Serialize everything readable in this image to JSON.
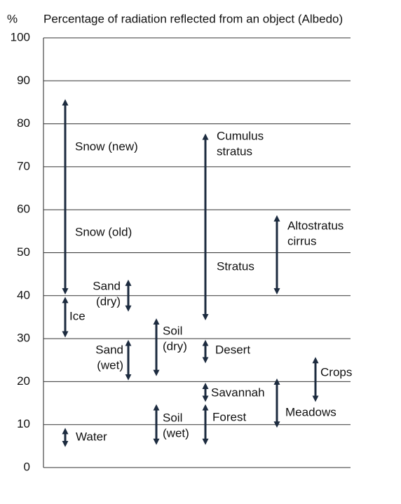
{
  "chart_data": {
    "type": "range",
    "title": "Percentage of radiation reflected from an object (Albedo)",
    "y_label": "%",
    "ylim": [
      0,
      100
    ],
    "yticks": [
      0,
      10,
      20,
      30,
      40,
      50,
      60,
      70,
      80,
      90,
      100
    ],
    "grid": true,
    "color": "#1c2b3f",
    "ranges": [
      {
        "labels": [
          [
            "Snow (new)"
          ],
          [
            "Snow (old)"
          ]
        ],
        "low": 41,
        "high": 85
      },
      {
        "labels": [
          [
            "Ice"
          ]
        ],
        "low": 31,
        "high": 39
      },
      {
        "labels": [
          [
            "Water"
          ]
        ],
        "low": 5.5,
        "high": 8.5
      },
      {
        "labels": [
          [
            "Sand",
            "(dry)"
          ]
        ],
        "low": 37,
        "high": 43
      },
      {
        "labels": [
          [
            "Sand",
            "(wet)"
          ]
        ],
        "low": 21,
        "high": 29
      },
      {
        "labels": [
          [
            "Soil",
            "(dry)"
          ]
        ],
        "low": 22,
        "high": 34
      },
      {
        "labels": [
          [
            "Soil",
            "(wet)"
          ]
        ],
        "low": 6,
        "high": 14
      },
      {
        "labels": [
          [
            "Cumulus",
            "stratus"
          ],
          [
            "Stratus"
          ]
        ],
        "low": 35,
        "high": 77
      },
      {
        "labels": [
          [
            "Desert"
          ]
        ],
        "low": 25,
        "high": 29
      },
      {
        "labels": [
          [
            "Savannah"
          ]
        ],
        "low": 16,
        "high": 19
      },
      {
        "labels": [
          [
            "Forest"
          ]
        ],
        "low": 6,
        "high": 14
      },
      {
        "labels": [
          [
            "Altostratus",
            "cirrus"
          ]
        ],
        "low": 41,
        "high": 58
      },
      {
        "labels": [
          [
            "Meadows"
          ]
        ],
        "low": 10,
        "high": 20
      },
      {
        "labels": [
          [
            "Crops"
          ]
        ],
        "low": 16,
        "high": 25
      }
    ]
  }
}
